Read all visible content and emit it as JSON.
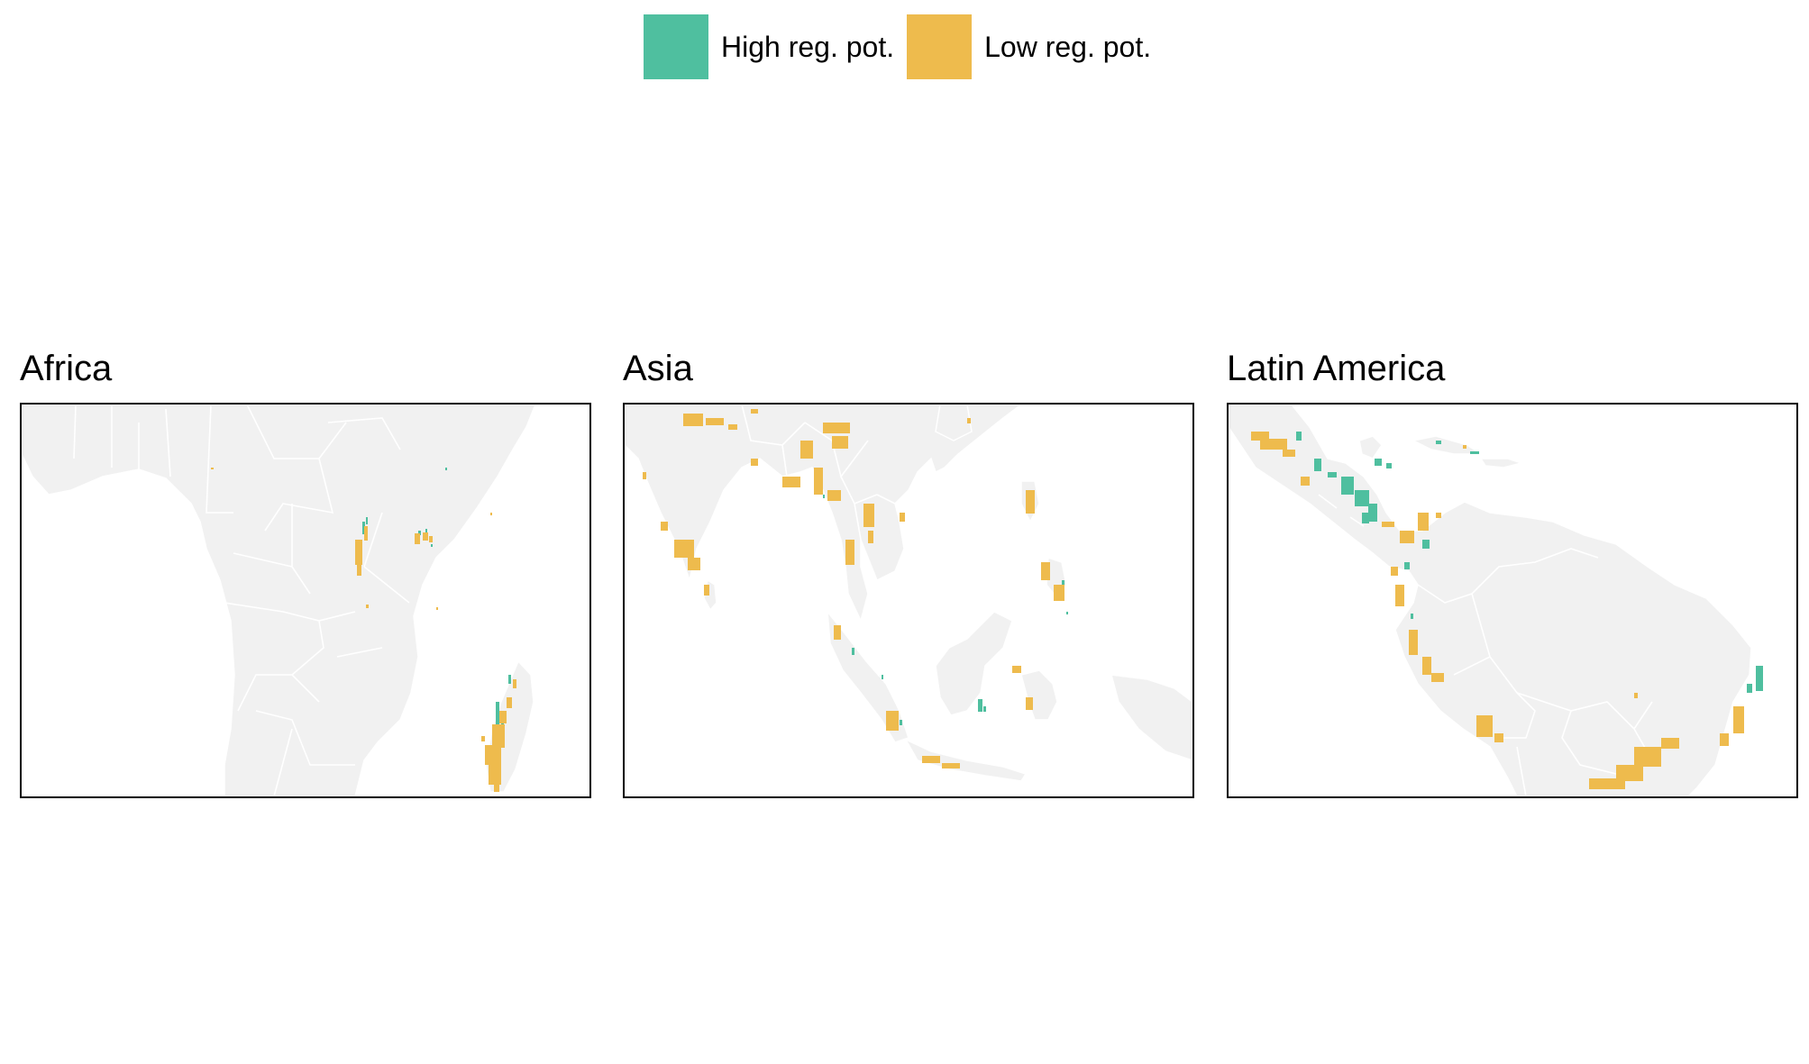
{
  "legend": {
    "items": [
      {
        "label": "High reg. pot.",
        "color": "#4FBF9F"
      },
      {
        "label": "Low reg. pot.",
        "color": "#EEBB4D"
      }
    ]
  },
  "colors": {
    "land": "#F1F1F1",
    "border": "#FFFFFF",
    "frame": "#000000"
  },
  "panels": [
    {
      "title": "Africa"
    },
    {
      "title": "Asia"
    },
    {
      "title": "Latin America"
    }
  ]
}
